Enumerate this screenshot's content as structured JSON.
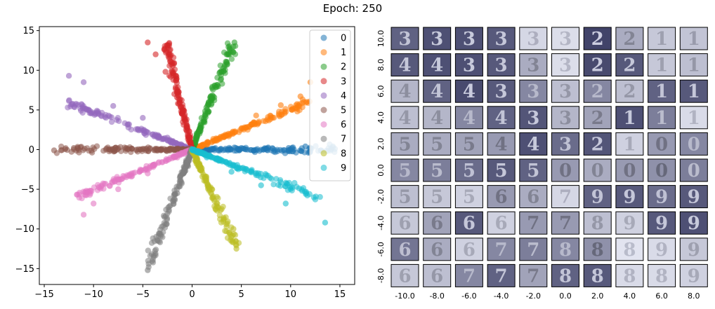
{
  "title": "Epoch: 250",
  "chart_data": [
    {
      "type": "scatter",
      "title": "",
      "xlabel": "",
      "ylabel": "",
      "xlim": [
        -15.5,
        16.5
      ],
      "ylim": [
        -17,
        15.5
      ],
      "xticks": [
        -15,
        -10,
        -5,
        0,
        5,
        10,
        15
      ],
      "yticks": [
        -15,
        -10,
        -5,
        0,
        5,
        10,
        15
      ],
      "xtick_labels": [
        "−15",
        "−10",
        "−5",
        "0",
        "5",
        "10",
        "15"
      ],
      "ytick_labels": [
        "−15",
        "−10",
        "−5",
        "0",
        "5",
        "10",
        "15"
      ],
      "grid": false,
      "legend_position": "top-right",
      "series": [
        {
          "name": "0",
          "color": "#1f77b4",
          "direction_deg": 0,
          "max_radius": 14.5,
          "sample_points": [
            [
              5.0,
              0.2
            ],
            [
              7.5,
              0.1
            ],
            [
              9.8,
              0.2
            ],
            [
              11.5,
              0.4
            ],
            [
              14.5,
              0.1
            ]
          ]
        },
        {
          "name": "1",
          "color": "#ff7f0e",
          "direction_deg": 27,
          "max_radius": 13.5,
          "sample_points": [
            [
              3.5,
              1.8
            ],
            [
              6.5,
              4.3
            ],
            [
              9.0,
              5.6
            ],
            [
              11.0,
              6.7
            ],
            [
              12.0,
              8.5
            ]
          ]
        },
        {
          "name": "2",
          "color": "#2ca02c",
          "direction_deg": 73,
          "max_radius": 14.0,
          "sample_points": [
            [
              1.2,
              3.5
            ],
            [
              2.0,
              6.5
            ],
            [
              3.0,
              9.8
            ],
            [
              3.5,
              12.0
            ],
            [
              4.3,
              13.5
            ]
          ]
        },
        {
          "name": "3",
          "color": "#d62728",
          "direction_deg": 101,
          "max_radius": 14.0,
          "sample_points": [
            [
              -0.5,
              3.0
            ],
            [
              -1.8,
              7.0
            ],
            [
              -2.7,
              9.8
            ],
            [
              -3.7,
              12.0
            ],
            [
              -4.5,
              13.5
            ]
          ]
        },
        {
          "name": "4",
          "color": "#9467bd",
          "direction_deg": 155,
          "max_radius": 14.0,
          "sample_points": [
            [
              -2.5,
              1.5
            ],
            [
              -5.0,
              4.0
            ],
            [
              -8.0,
              5.5
            ],
            [
              -11.0,
              8.5
            ],
            [
              -12.5,
              9.3
            ]
          ]
        },
        {
          "name": "5",
          "color": "#8c564b",
          "direction_deg": 180,
          "max_radius": 14.0,
          "sample_points": [
            [
              -2.0,
              0.1
            ],
            [
              -5.0,
              0.1
            ],
            [
              -8.0,
              0.0
            ],
            [
              -12.0,
              0.2
            ],
            [
              -14.0,
              -0.1
            ]
          ]
        },
        {
          "name": "6",
          "color": "#e377c2",
          "direction_deg": 207,
          "max_radius": 13.0,
          "sample_points": [
            [
              -1.5,
              -1.0
            ],
            [
              -4.5,
              -3.0
            ],
            [
              -7.5,
              -5.0
            ],
            [
              -10.0,
              -6.8
            ],
            [
              -11.0,
              -8.2
            ]
          ]
        },
        {
          "name": "7",
          "color": "#7f7f7f",
          "direction_deg": 253,
          "max_radius": 15.5,
          "sample_points": [
            [
              -0.5,
              -2.0
            ],
            [
              -1.5,
              -5.5
            ],
            [
              -2.8,
              -8.5
            ],
            [
              -3.5,
              -11.5
            ],
            [
              -4.5,
              -15.2
            ]
          ]
        },
        {
          "name": "8",
          "color": "#bcbd22",
          "direction_deg": 290,
          "max_radius": 13.0,
          "sample_points": [
            [
              0.8,
              -2.5
            ],
            [
              2.0,
              -5.0
            ],
            [
              3.0,
              -7.5
            ],
            [
              4.2,
              -10.0
            ],
            [
              4.5,
              -12.5
            ]
          ]
        },
        {
          "name": "9",
          "color": "#17becf",
          "direction_deg": 335,
          "max_radius": 14.5,
          "sample_points": [
            [
              1.5,
              -1.0
            ],
            [
              4.0,
              -2.8
            ],
            [
              7.0,
              -4.5
            ],
            [
              9.5,
              -6.8
            ],
            [
              13.5,
              -9.2
            ]
          ]
        }
      ]
    },
    {
      "type": "heatmap",
      "title": "",
      "xlabel": "",
      "ylabel": "",
      "x_tick_labels": [
        "-10.0",
        "-8.0",
        "-6.0",
        "-4.0",
        "-2.0",
        "0.0",
        "2.0",
        "4.0",
        "6.0",
        "8.0"
      ],
      "y_tick_labels": [
        "10.0",
        "8.0",
        "6.0",
        "4.0",
        "2.0",
        "0.0",
        "-2.0",
        "-4.0",
        "-6.0",
        "-8.0"
      ],
      "digits": [
        [
          "3",
          "3",
          "3",
          "3",
          "3",
          "3",
          "2",
          "2",
          "1",
          "1"
        ],
        [
          "4",
          "4",
          "3",
          "3",
          "3",
          "3",
          "2",
          "2",
          "1",
          "1"
        ],
        [
          "4",
          "4",
          "4",
          "3",
          "3",
          "3",
          "2",
          "2",
          "1",
          "1"
        ],
        [
          "4",
          "4",
          "4",
          "4",
          "3",
          "3",
          "2",
          "1",
          "1",
          "1"
        ],
        [
          "5",
          "5",
          "5",
          "4",
          "4",
          "3",
          "2",
          "1",
          "0",
          "0"
        ],
        [
          "5",
          "5",
          "5",
          "5",
          "5",
          "0",
          "0",
          "0",
          "0",
          "0"
        ],
        [
          "5",
          "5",
          "5",
          "6",
          "6",
          "7",
          "9",
          "9",
          "9",
          "9"
        ],
        [
          "6",
          "6",
          "6",
          "6",
          "7",
          "7",
          "8",
          "9",
          "9",
          "9"
        ],
        [
          "6",
          "6",
          "6",
          "7",
          "7",
          "8",
          "8",
          "8",
          "9",
          "9"
        ],
        [
          "6",
          "6",
          "7",
          "7",
          "7",
          "8",
          "8",
          "8",
          "8",
          "9"
        ]
      ],
      "darkness": [
        [
          0.75,
          0.85,
          0.85,
          0.8,
          0.12,
          0.08,
          0.92,
          0.35,
          0.2,
          0.22
        ],
        [
          0.8,
          0.85,
          0.85,
          0.8,
          0.35,
          0.08,
          0.88,
          0.8,
          0.2,
          0.25
        ],
        [
          0.3,
          0.75,
          0.88,
          0.8,
          0.55,
          0.25,
          0.55,
          0.25,
          0.75,
          0.8
        ],
        [
          0.25,
          0.3,
          0.55,
          0.75,
          0.82,
          0.3,
          0.4,
          0.85,
          0.6,
          0.1
        ],
        [
          0.35,
          0.35,
          0.4,
          0.45,
          0.85,
          0.7,
          0.82,
          0.15,
          0.45,
          0.55
        ],
        [
          0.55,
          0.6,
          0.7,
          0.8,
          0.75,
          0.45,
          0.35,
          0.45,
          0.5,
          0.6
        ],
        [
          0.25,
          0.2,
          0.15,
          0.45,
          0.35,
          0.12,
          0.75,
          0.8,
          0.7,
          0.8
        ],
        [
          0.2,
          0.4,
          0.8,
          0.15,
          0.45,
          0.45,
          0.25,
          0.15,
          0.8,
          0.85
        ],
        [
          0.65,
          0.35,
          0.15,
          0.55,
          0.6,
          0.55,
          0.5,
          0.05,
          0.1,
          0.2
        ],
        [
          0.2,
          0.25,
          0.55,
          0.75,
          0.4,
          0.75,
          0.8,
          0.1,
          0.1,
          0.15
        ]
      ]
    }
  ]
}
